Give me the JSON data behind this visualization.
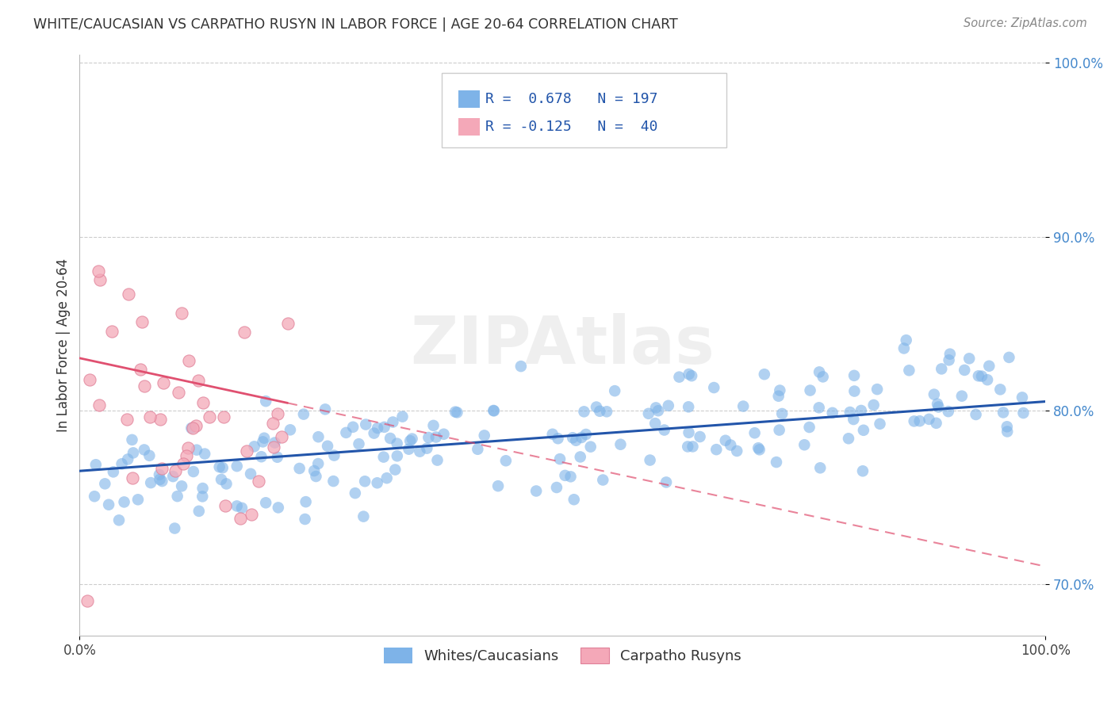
{
  "title": "WHITE/CAUCASIAN VS CARPATHO RUSYN IN LABOR FORCE | AGE 20-64 CORRELATION CHART",
  "source": "Source: ZipAtlas.com",
  "ylabel": "In Labor Force | Age 20-64",
  "xlim": [
    0.0,
    1.0
  ],
  "ylim": [
    0.67,
    1.005
  ],
  "yticks": [
    0.7,
    0.8,
    0.9,
    1.0
  ],
  "ytick_labels": [
    "70.0%",
    "80.0%",
    "90.0%",
    "100.0%"
  ],
  "xticks": [
    0.0,
    1.0
  ],
  "xtick_labels": [
    "0.0%",
    "100.0%"
  ],
  "blue_R": 0.678,
  "blue_N": 197,
  "pink_R": -0.125,
  "pink_N": 40,
  "blue_color": "#7eb3e8",
  "pink_color": "#f4a8b8",
  "blue_line_color": "#2255aa",
  "pink_line_color": "#e05070",
  "watermark": "ZIPAtlas",
  "legend_blue_label": "Whites/Caucasians",
  "legend_pink_label": "Carpatho Rusyns",
  "blue_seed": 42,
  "pink_seed": 7
}
